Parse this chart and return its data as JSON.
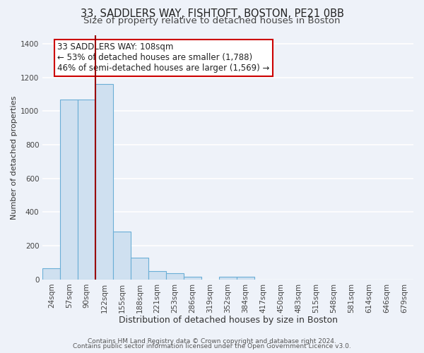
{
  "title": "33, SADDLERS WAY, FISHTOFT, BOSTON, PE21 0BB",
  "subtitle": "Size of property relative to detached houses in Boston",
  "xlabel": "Distribution of detached houses by size in Boston",
  "ylabel": "Number of detached properties",
  "bar_color": "#cfe0f0",
  "bar_edge_color": "#6aaed6",
  "background_color": "#eef2f9",
  "grid_color": "#ffffff",
  "tick_labels": [
    "24sqm",
    "57sqm",
    "90sqm",
    "122sqm",
    "155sqm",
    "188sqm",
    "221sqm",
    "253sqm",
    "286sqm",
    "319sqm",
    "352sqm",
    "384sqm",
    "417sqm",
    "450sqm",
    "483sqm",
    "515sqm",
    "548sqm",
    "581sqm",
    "614sqm",
    "646sqm",
    "679sqm"
  ],
  "bar_values": [
    65,
    1070,
    1070,
    1160,
    285,
    130,
    48,
    35,
    18,
    0,
    18,
    18,
    0,
    0,
    0,
    0,
    0,
    0,
    0,
    0,
    0
  ],
  "ylim": [
    0,
    1450
  ],
  "yticks": [
    0,
    200,
    400,
    600,
    800,
    1000,
    1200,
    1400
  ],
  "vline_x_idx": 2.5,
  "vline_color": "#990000",
  "annotation_text": "33 SADDLERS WAY: 108sqm\n← 53% of detached houses are smaller (1,788)\n46% of semi-detached houses are larger (1,569) →",
  "annotation_box_facecolor": "#ffffff",
  "annotation_box_edgecolor": "#cc0000",
  "footer_line1": "Contains HM Land Registry data © Crown copyright and database right 2024.",
  "footer_line2": "Contains public sector information licensed under the Open Government Licence v3.0.",
  "title_fontsize": 10.5,
  "subtitle_fontsize": 9.5,
  "xlabel_fontsize": 9,
  "ylabel_fontsize": 8,
  "tick_fontsize": 7.5,
  "annotation_fontsize": 8.5,
  "footer_fontsize": 6.5
}
